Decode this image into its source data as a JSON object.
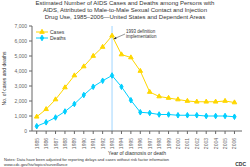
{
  "chart_data": {
    "type": "line",
    "title": "Estimated Number of AIDS Cases and Deaths among Persons with\nAIDS, Attributed to Male-to-Male Sexual Contact and Injection\nDrug Use, 1985–2006—United States and Dependent Areas",
    "x_label": "Year of diagnosis or death",
    "y_label": "No. of cases and deaths",
    "x": [
      1985,
      1986,
      1987,
      1988,
      1989,
      1990,
      1991,
      1992,
      1993,
      1994,
      1995,
      1996,
      1997,
      1998,
      1999,
      2000,
      2001,
      2002,
      2003,
      2004,
      2005,
      2006
    ],
    "series": [
      {
        "name": "Cases",
        "color": "#FFD700",
        "marker": "triangle",
        "values": [
          950,
          1450,
          2100,
          2900,
          3700,
          4300,
          5000,
          5600,
          6350,
          5100,
          4900,
          4000,
          2600,
          2300,
          2200,
          2100,
          2000,
          1950,
          1950,
          1950,
          2000,
          1900
        ]
      },
      {
        "name": "Deaths",
        "color": "#00CFFF",
        "marker": "diamond",
        "values": [
          320,
          580,
          900,
          1300,
          1800,
          2400,
          2950,
          3350,
          3700,
          2950,
          2050,
          1250,
          1200,
          1100,
          1100,
          1050,
          1050,
          1050,
          1000,
          1000,
          1000,
          950
        ]
      }
    ],
    "xlim": [
      1984.5,
      2006.8
    ],
    "xticks": [
      1985,
      1986,
      1987,
      1988,
      1989,
      1990,
      1991,
      1992,
      1993,
      1994,
      1995,
      1996,
      1997,
      1998,
      1999,
      2000,
      2001,
      2002,
      2003,
      2004,
      2005,
      2006
    ],
    "ylim": [
      0,
      7000
    ],
    "yticks": [
      0,
      {
        "value": 1000,
        "label": "1,000"
      },
      {
        "value": 2000,
        "label": "2,000"
      },
      {
        "value": 3000,
        "label": "3,000"
      },
      {
        "value": 4000,
        "label": "4,000"
      },
      {
        "value": 5000,
        "label": "5,000"
      },
      {
        "value": 6000,
        "label": "6,000"
      },
      {
        "value": 7000,
        "label": "7,000"
      }
    ],
    "grid": false,
    "legend": "upper left",
    "annotations": [
      {
        "text": "1993 definition\nimplementation",
        "x": 1993,
        "color": "#88CCFF"
      },
      {
        "text": "Notes: Data have been adjusted for reporting delays and cases without risk factor information\nwww.cdc.gov/hiv/topics/surveillance"
      },
      {
        "text": "CDC"
      }
    ]
  }
}
